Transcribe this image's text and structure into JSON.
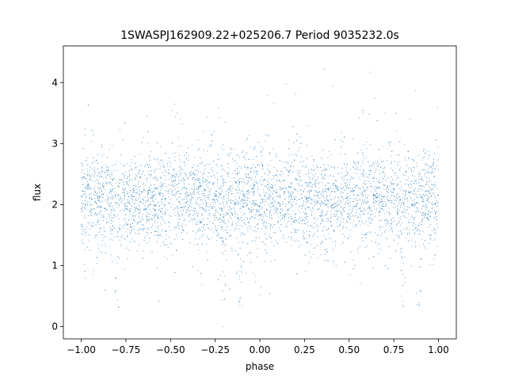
{
  "chart_data": {
    "type": "scatter",
    "title": "1SWASPJ162909.22+025206.7 Period 9035232.0s",
    "xlabel": "phase",
    "ylabel": "flux",
    "xlim": [
      -1.1,
      1.1
    ],
    "ylim": [
      -0.2,
      4.6
    ],
    "xticks": [
      -1.0,
      -0.75,
      -0.5,
      -0.25,
      0.0,
      0.25,
      0.5,
      0.75,
      1.0
    ],
    "xtick_labels": [
      "−1.00",
      "−0.75",
      "−0.50",
      "−0.25",
      "0.00",
      "0.25",
      "0.50",
      "0.75",
      "1.00"
    ],
    "yticks": [
      0,
      1,
      2,
      3,
      4
    ],
    "ytick_labels": [
      "0",
      "1",
      "2",
      "3",
      "4"
    ],
    "grid": false,
    "marker_color": "#1f77b4",
    "series": [
      {
        "x_range": [
          -1.0,
          1.0
        ],
        "flux_median": 2.1,
        "flux_band": [
          1.5,
          2.7
        ],
        "flux_spread": [
          0.0,
          4.4
        ],
        "dip_phases": [
          -0.8,
          -0.2,
          -0.11,
          0.8,
          0.89
        ],
        "dip_min_flux": 0.3
      }
    ]
  }
}
